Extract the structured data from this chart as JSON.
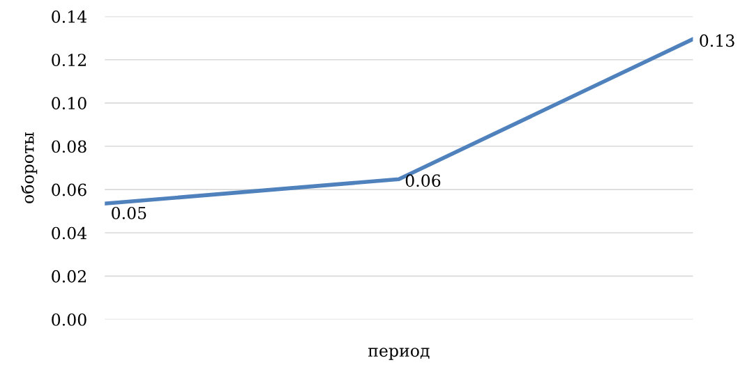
{
  "chart_data": {
    "type": "line",
    "xlabel": "период",
    "ylabel": "обороты",
    "categories": [
      null,
      null,
      null
    ],
    "series": [
      {
        "color": "#4f81bd",
        "values": [
          0.0535,
          0.0648,
          0.1295
        ],
        "value_labels": [
          "0.05",
          "0.06",
          "0.13"
        ]
      }
    ],
    "ylim": [
      0,
      0.14
    ],
    "yticks": [
      {
        "value": 0,
        "label": "0.00"
      },
      {
        "value": 0.02,
        "label": "0.02"
      },
      {
        "value": 0.04,
        "label": "0.04"
      },
      {
        "value": 0.06,
        "label": "0.06"
      },
      {
        "value": 0.08,
        "label": "0.08"
      },
      {
        "value": 0.1,
        "label": "0.10"
      },
      {
        "value": 0.12,
        "label": "0.12"
      },
      {
        "value": 0.14,
        "label": "0.14"
      }
    ],
    "grid": "y",
    "legend": false,
    "marker": "none",
    "line_style": "solid"
  }
}
